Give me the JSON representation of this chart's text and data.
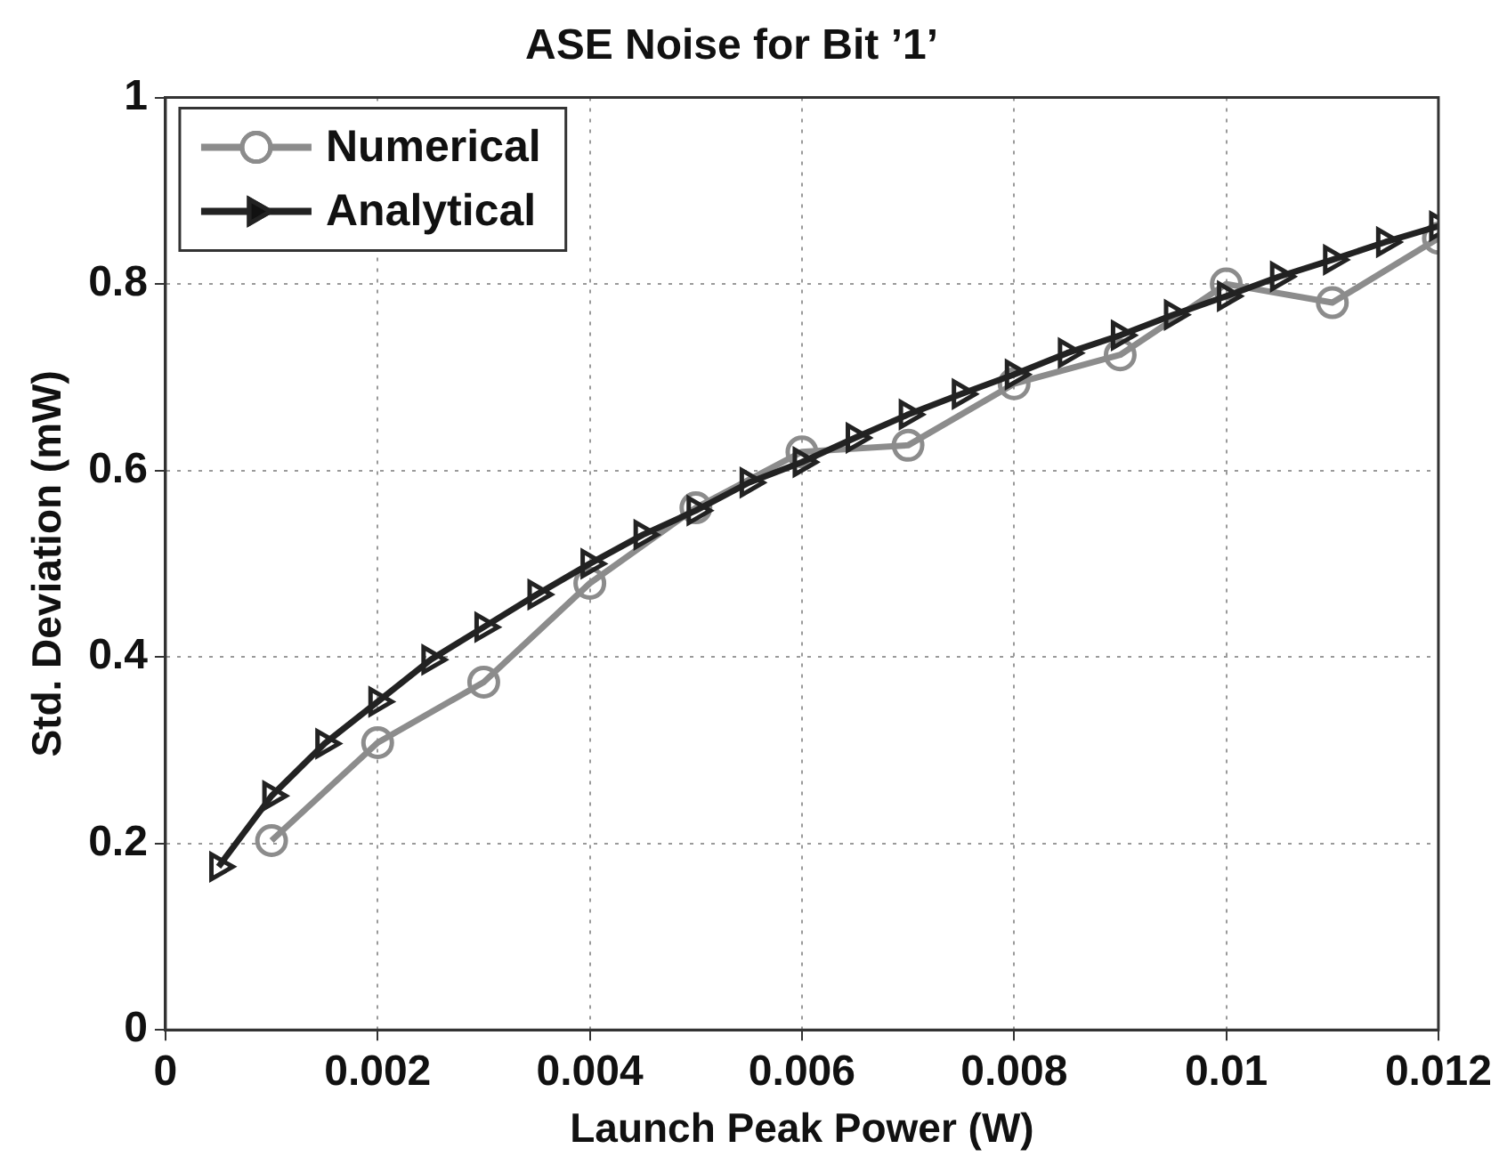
{
  "chart_data": {
    "type": "line",
    "title": "ASE Noise for Bit ’1’",
    "xlabel": "Launch Peak Power (W)",
    "ylabel": "Std. Deviation (mW)",
    "xlim": [
      0,
      0.012
    ],
    "xticks": [
      0,
      0.002,
      0.004,
      0.006,
      0.008,
      0.01,
      0.012
    ],
    "ylim": [
      0,
      1
    ],
    "yticks": [
      0,
      0.2,
      0.4,
      0.6,
      0.8,
      1
    ],
    "grid": true,
    "legend": "top left",
    "line_style": "solid",
    "series": [
      {
        "name": "Numerical",
        "color": "#8c8c8c",
        "marker": "circle",
        "x": [
          0.001,
          0.002,
          0.003,
          0.004,
          0.005,
          0.006,
          0.007,
          0.008,
          0.009,
          0.01,
          0.011,
          0.012
        ],
        "values": [
          0.203,
          0.308,
          0.373,
          0.479,
          0.56,
          0.62,
          0.627,
          0.693,
          0.724,
          0.8,
          0.78,
          0.849
        ]
      },
      {
        "name": "Analytical",
        "color": "#222222",
        "marker": "triangle",
        "x": [
          0.0005,
          0.001,
          0.0015,
          0.002,
          0.0025,
          0.003,
          0.0035,
          0.004,
          0.0045,
          0.005,
          0.0055,
          0.006,
          0.0065,
          0.007,
          0.0075,
          0.008,
          0.0085,
          0.009,
          0.0095,
          0.01,
          0.0105,
          0.011,
          0.0115,
          0.012
        ],
        "values": [
          0.175,
          0.251,
          0.307,
          0.352,
          0.397,
          0.432,
          0.467,
          0.5,
          0.531,
          0.557,
          0.587,
          0.609,
          0.635,
          0.66,
          0.682,
          0.703,
          0.726,
          0.745,
          0.767,
          0.787,
          0.808,
          0.826,
          0.845,
          0.862
        ]
      }
    ]
  }
}
